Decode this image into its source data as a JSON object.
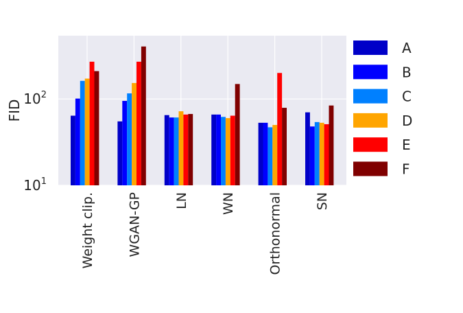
{
  "chart_data": {
    "type": "bar",
    "title": "",
    "xlabel": "",
    "ylabel": "FID",
    "yscale": "log",
    "ylim": [
      10,
      540
    ],
    "yticks": [
      {
        "value": 10,
        "base": "10",
        "exp": "1"
      },
      {
        "value": 100,
        "base": "10",
        "exp": "2"
      }
    ],
    "categories": [
      "Weight clip.",
      "WGAN-GP",
      "LN",
      "WN",
      "Orthonormal",
      "SN"
    ],
    "series": [
      {
        "name": "A",
        "color": "#0000c8",
        "values": [
          64,
          55,
          65,
          66,
          53,
          70
        ]
      },
      {
        "name": "B",
        "color": "#0000ff",
        "values": [
          101,
          95,
          61,
          66,
          53,
          48
        ]
      },
      {
        "name": "C",
        "color": "#0080ff",
        "values": [
          162,
          116,
          61,
          62,
          47,
          54
        ]
      },
      {
        "name": "D",
        "color": "#ffa500",
        "values": [
          172,
          153,
          72,
          60,
          50,
          53
        ]
      },
      {
        "name": "E",
        "color": "#ff0000",
        "values": [
          270,
          270,
          66,
          64,
          200,
          51
        ]
      },
      {
        "name": "F",
        "color": "#800000",
        "values": [
          210,
          405,
          67,
          149,
          79,
          84
        ]
      }
    ],
    "legend": "right",
    "grid": true
  }
}
